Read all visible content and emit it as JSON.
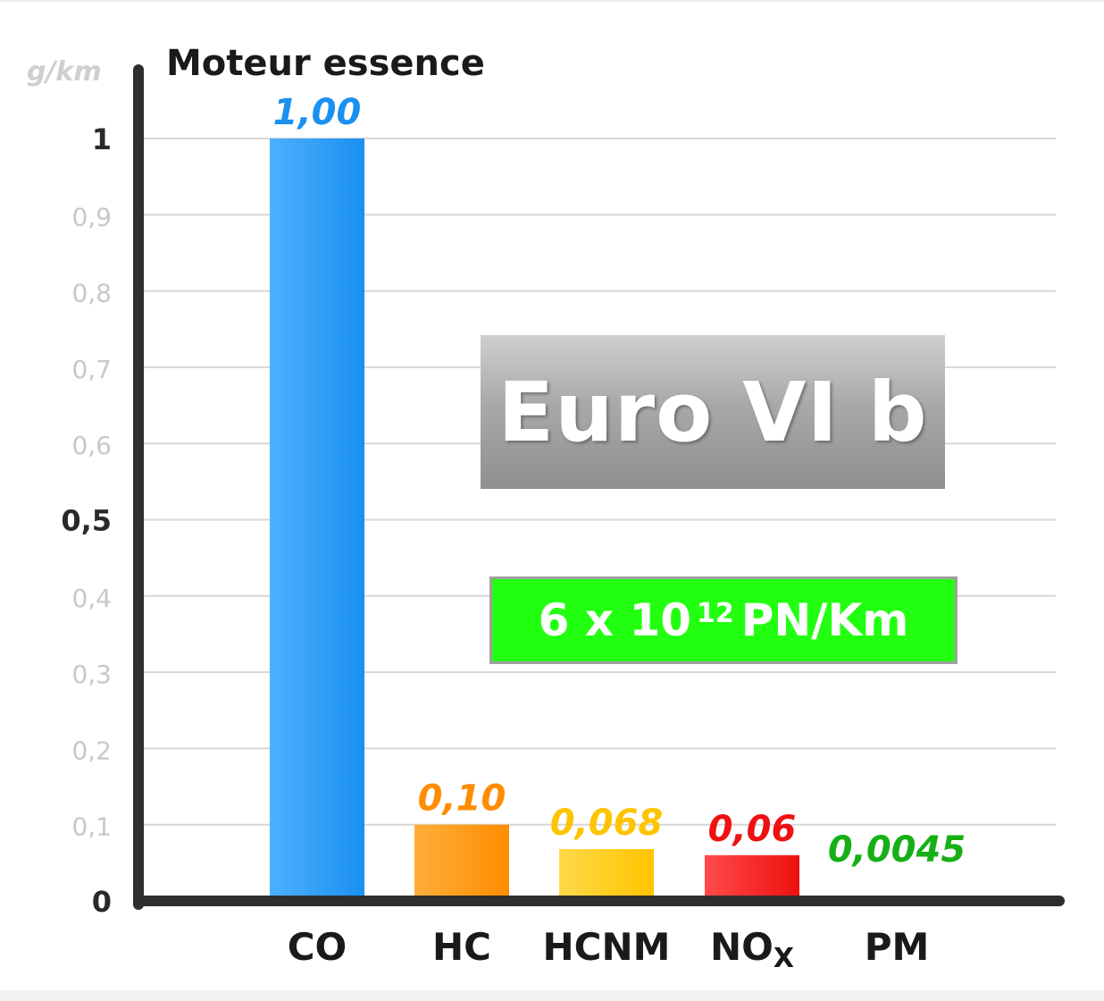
{
  "chart_data": {
    "type": "bar",
    "title": "Moteur essence",
    "ylabel": "g/km",
    "ylim": [
      0,
      1.1
    ],
    "yticks": [
      {
        "value": 0,
        "label": "0"
      },
      {
        "value": 0.1,
        "label": "0,1"
      },
      {
        "value": 0.2,
        "label": "0,2"
      },
      {
        "value": 0.3,
        "label": "0,3"
      },
      {
        "value": 0.4,
        "label": "0,4"
      },
      {
        "value": 0.5,
        "label": "0,5"
      },
      {
        "value": 0.6,
        "label": "0,6"
      },
      {
        "value": 0.7,
        "label": "0,7"
      },
      {
        "value": 0.8,
        "label": "0,8"
      },
      {
        "value": 0.9,
        "label": "0,9"
      },
      {
        "value": 1,
        "label": "1"
      }
    ],
    "grid": true,
    "bars": [
      {
        "category": "CO",
        "sub": "",
        "value": 1.0,
        "label": "1,00",
        "color": "#1a90f0",
        "color_light": "#4db0ff"
      },
      {
        "category": "HC",
        "sub": "",
        "value": 0.1,
        "label": "0,10",
        "color": "#ff8c00",
        "color_light": "#ffae3a"
      },
      {
        "category": "HCNM",
        "sub": "",
        "value": 0.068,
        "label": "0,068",
        "color": "#ffc400",
        "color_light": "#ffd94a"
      },
      {
        "category": "NO",
        "sub": "X",
        "value": 0.06,
        "label": "0,06",
        "color": "#ee1111",
        "color_light": "#ff4a4a"
      },
      {
        "category": "PM",
        "sub": "",
        "value": 0.0045,
        "label": "0,0045",
        "color": "#16b016",
        "color_light": "#2ed42e"
      }
    ],
    "label_colors": {
      "CO": "#1a90f0",
      "HC": "#ff7a00",
      "HCNM": "#ff9f00",
      "NO": "#ee0000",
      "PM": "#14b014"
    }
  },
  "badges": {
    "euro": "Euro VI b",
    "pn_prefix": "6 x 10",
    "pn_exp": "12",
    "pn_suffix": "PN/Km"
  }
}
